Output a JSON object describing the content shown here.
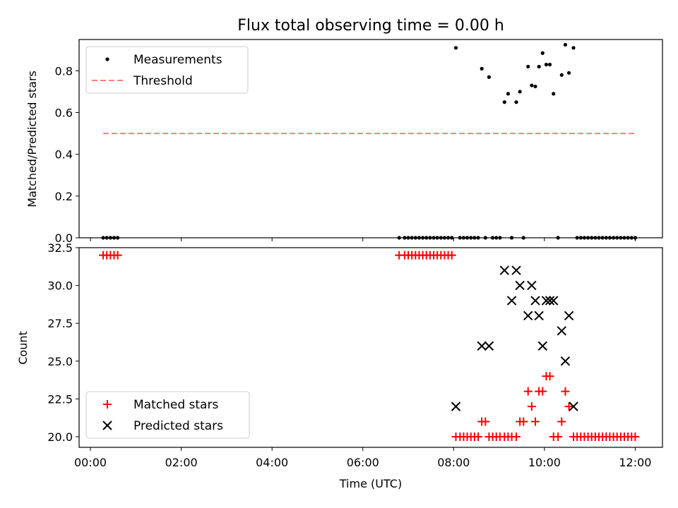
{
  "figure": {
    "title": "Flux total observing time = 0.00 h",
    "xlabel": "Time (UTC)",
    "x_tick_labels": [
      "00:00",
      "02:00",
      "04:00",
      "06:00",
      "08:00",
      "10:00",
      "12:00"
    ]
  },
  "colors": {
    "measurements": "#000000",
    "threshold": "#ff7f7f",
    "matched": "#ff0000",
    "predicted": "#000000"
  },
  "chart_data": [
    {
      "type": "scatter",
      "panel": "top",
      "xaxis": "time of day (hours, UTC)",
      "xlim": [
        -0.25,
        12.6
      ],
      "ylabel": "Matched/Predicted stars",
      "ylim": [
        0,
        0.95
      ],
      "yticks": [
        0.0,
        0.2,
        0.4,
        0.6,
        0.8
      ],
      "y_tick_labels": [
        "0.0",
        "0.2",
        "0.4",
        "0.6",
        "0.8"
      ],
      "legend": {
        "placement": "upper-left",
        "entries": [
          "Measurements",
          "Threshold"
        ]
      },
      "series": [
        {
          "name": "Measurements",
          "marker": "dot",
          "x": [
            0.28,
            0.36,
            0.44,
            0.52,
            0.6,
            6.8,
            6.92,
            7.0,
            7.08,
            7.16,
            7.24,
            7.32,
            7.4,
            7.48,
            7.56,
            7.64,
            7.72,
            7.8,
            7.88,
            7.96,
            8.05,
            8.14,
            8.22,
            8.3,
            8.38,
            8.46,
            8.54,
            8.62,
            8.7,
            8.78,
            8.86,
            8.94,
            9.02,
            9.12,
            9.2,
            9.28,
            9.38,
            9.46,
            9.54,
            9.64,
            9.72,
            9.8,
            9.88,
            9.96,
            10.04,
            10.12,
            10.2,
            10.3,
            10.38,
            10.46,
            10.54,
            10.64,
            10.72,
            10.8,
            10.88,
            10.96,
            11.04,
            11.12,
            11.2,
            11.28,
            11.36,
            11.44,
            11.52,
            11.6,
            11.68,
            11.76,
            11.84,
            11.92,
            12.0
          ],
          "y": [
            0,
            0,
            0,
            0,
            0,
            0,
            0,
            0,
            0,
            0,
            0,
            0,
            0,
            0,
            0,
            0,
            0,
            0,
            0,
            0,
            0.91,
            0,
            0,
            0,
            0,
            0,
            0,
            0.81,
            0,
            0.77,
            0,
            0,
            0,
            0.65,
            0.69,
            0,
            0.65,
            0.7,
            0,
            0.82,
            0.73,
            0.725,
            0.82,
            0.885,
            0.83,
            0.83,
            0.69,
            0,
            0.78,
            0.925,
            0.79,
            0.91,
            0,
            0,
            0,
            0,
            0,
            0,
            0,
            0,
            0,
            0,
            0,
            0,
            0,
            0,
            0,
            0,
            0
          ]
        },
        {
          "name": "Threshold",
          "marker": "dashed-line",
          "x": [
            0.28,
            12.0
          ],
          "y": [
            0.5,
            0.5
          ]
        }
      ]
    },
    {
      "type": "scatter",
      "panel": "bottom",
      "xlabel": "Time (UTC)",
      "xlim": [
        -0.25,
        12.6
      ],
      "ylabel": "Count",
      "ylim": [
        19.3,
        32.5
      ],
      "yticks": [
        20.0,
        22.5,
        25.0,
        27.5,
        30.0,
        32.5
      ],
      "y_tick_labels": [
        "20.0",
        "22.5",
        "25.0",
        "27.5",
        "30.0",
        "32.5"
      ],
      "x_ticks": [
        0,
        2,
        4,
        6,
        8,
        10,
        12
      ],
      "x_tick_labels": [
        "00:00",
        "02:00",
        "04:00",
        "06:00",
        "08:00",
        "10:00",
        "12:00"
      ],
      "legend": {
        "placement": "lower-left",
        "entries": [
          "Matched stars",
          "Predicted stars"
        ]
      },
      "series": [
        {
          "name": "Matched stars",
          "marker": "plus",
          "x": [
            0.28,
            0.36,
            0.44,
            0.52,
            0.6,
            6.8,
            6.92,
            7.0,
            7.08,
            7.16,
            7.24,
            7.32,
            7.4,
            7.48,
            7.56,
            7.64,
            7.72,
            7.8,
            7.88,
            7.96,
            8.05,
            8.14,
            8.22,
            8.3,
            8.38,
            8.46,
            8.54,
            8.62,
            8.7,
            8.78,
            8.86,
            8.94,
            9.02,
            9.12,
            9.2,
            9.28,
            9.38,
            9.46,
            9.54,
            9.64,
            9.72,
            9.8,
            9.88,
            9.96,
            10.04,
            10.12,
            10.2,
            10.3,
            10.38,
            10.46,
            10.54,
            10.64,
            10.72,
            10.8,
            10.88,
            10.96,
            11.04,
            11.12,
            11.2,
            11.28,
            11.36,
            11.44,
            11.52,
            11.6,
            11.68,
            11.76,
            11.84,
            11.92,
            12.0
          ],
          "y": [
            32,
            32,
            32,
            32,
            32,
            32,
            32,
            32,
            32,
            32,
            32,
            32,
            32,
            32,
            32,
            32,
            32,
            32,
            32,
            32,
            20,
            20,
            20,
            20,
            20,
            20,
            20,
            21,
            21,
            20,
            20,
            20,
            20,
            20,
            20,
            20,
            20,
            21,
            21,
            23,
            22,
            21,
            23,
            23,
            24,
            24,
            20,
            20,
            21,
            23,
            22,
            20,
            20,
            20,
            20,
            20,
            20,
            20,
            20,
            20,
            20,
            20,
            20,
            20,
            20,
            20,
            20,
            20,
            20
          ]
        },
        {
          "name": "Predicted stars",
          "marker": "x",
          "x": [
            8.05,
            8.62,
            8.78,
            9.12,
            9.28,
            9.38,
            9.46,
            9.64,
            9.72,
            9.8,
            9.88,
            9.96,
            10.04,
            10.12,
            10.2,
            10.38,
            10.46,
            10.54,
            10.64
          ],
          "y": [
            22,
            26,
            26,
            31,
            29,
            31,
            30,
            28,
            30,
            29,
            28,
            26,
            29,
            29,
            29,
            27,
            25,
            28,
            22
          ]
        }
      ]
    }
  ]
}
